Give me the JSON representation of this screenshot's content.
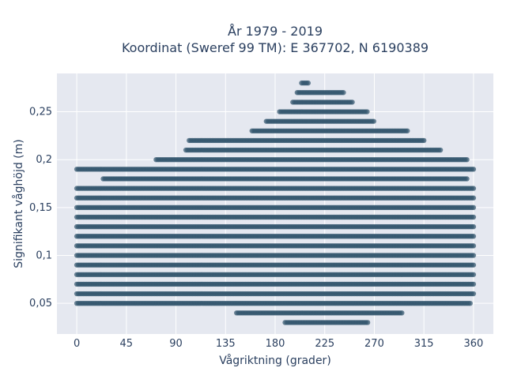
{
  "chart_data": {
    "type": "scatter",
    "title": "År 1979 - 2019",
    "subtitle": "Koordinat (Sweref 99 TM): E 367702, N 6190389",
    "xlabel": "Vågriktning (grader)",
    "ylabel": "Signifikant våghöjd (m)",
    "xlim": [
      -18,
      378
    ],
    "ylim": [
      0.018,
      0.29
    ],
    "x_ticks": [
      0,
      45,
      90,
      135,
      180,
      225,
      270,
      315,
      360
    ],
    "x_tick_labels": [
      "0",
      "45",
      "90",
      "135",
      "180",
      "225",
      "270",
      "315",
      "360"
    ],
    "y_ticks": [
      0.05,
      0.1,
      0.15,
      0.2,
      0.25
    ],
    "y_tick_labels": [
      "0,05",
      "0,1",
      "0,15",
      "0,2",
      "0,25"
    ],
    "grid": true,
    "legend": "none",
    "marker_color": "#33566e",
    "background_color": "#e5e8f0",
    "levels": [
      {
        "y": 0.03,
        "x_min": 189,
        "x_max": 264
      },
      {
        "y": 0.04,
        "x_min": 145,
        "x_max": 296
      },
      {
        "y": 0.05,
        "x_min": 0,
        "x_max": 357
      },
      {
        "y": 0.06,
        "x_min": 0,
        "x_max": 360
      },
      {
        "y": 0.07,
        "x_min": 0,
        "x_max": 360
      },
      {
        "y": 0.08,
        "x_min": 0,
        "x_max": 360
      },
      {
        "y": 0.09,
        "x_min": 0,
        "x_max": 360
      },
      {
        "y": 0.1,
        "x_min": 0,
        "x_max": 360
      },
      {
        "y": 0.11,
        "x_min": 0,
        "x_max": 360
      },
      {
        "y": 0.12,
        "x_min": 0,
        "x_max": 360
      },
      {
        "y": 0.13,
        "x_min": 0,
        "x_max": 360
      },
      {
        "y": 0.14,
        "x_min": 0,
        "x_max": 360
      },
      {
        "y": 0.15,
        "x_min": 0,
        "x_max": 360
      },
      {
        "y": 0.16,
        "x_min": 0,
        "x_max": 360
      },
      {
        "y": 0.17,
        "x_min": 0,
        "x_max": 360
      },
      {
        "y": 0.18,
        "x_min": 24,
        "x_max": 354
      },
      {
        "y": 0.19,
        "x_min": 0,
        "x_max": 360
      },
      {
        "y": 0.2,
        "x_min": 72,
        "x_max": 354
      },
      {
        "y": 0.21,
        "x_min": 99,
        "x_max": 331
      },
      {
        "y": 0.22,
        "x_min": 102,
        "x_max": 315
      },
      {
        "y": 0.23,
        "x_min": 159,
        "x_max": 300
      },
      {
        "y": 0.24,
        "x_min": 172,
        "x_max": 270
      },
      {
        "y": 0.25,
        "x_min": 184,
        "x_max": 264
      },
      {
        "y": 0.26,
        "x_min": 196,
        "x_max": 250
      },
      {
        "y": 0.27,
        "x_min": 200,
        "x_max": 242
      },
      {
        "y": 0.28,
        "x_min": 204,
        "x_max": 210
      }
    ]
  }
}
